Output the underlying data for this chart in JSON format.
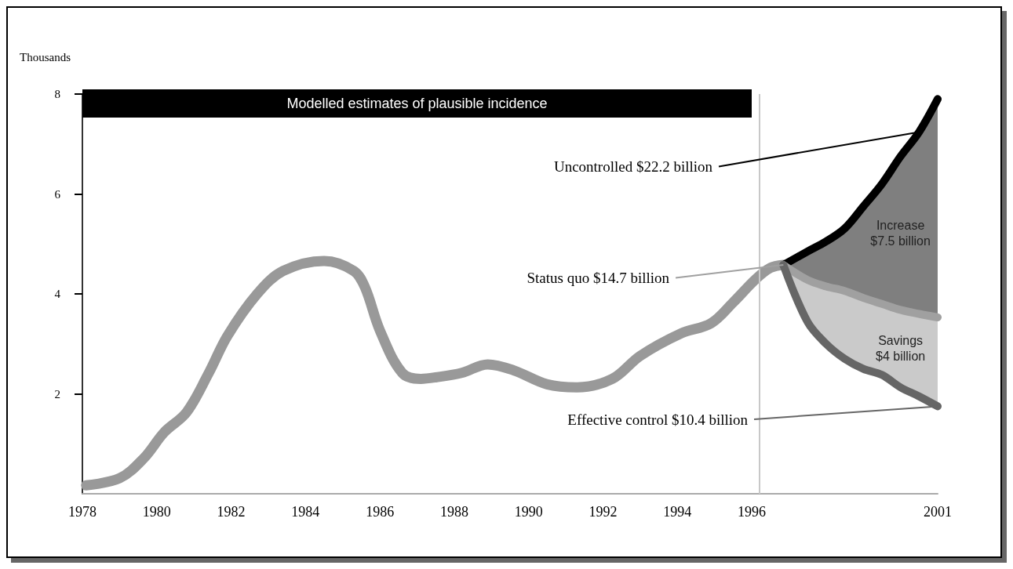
{
  "chart_data": {
    "type": "line",
    "ylabel": "Thousands",
    "xlim": [
      1978,
      2001
    ],
    "xticks": [
      1978,
      1980,
      1982,
      1984,
      1986,
      1988,
      1990,
      1992,
      1994,
      1996,
      2001
    ],
    "ylim": [
      0,
      8
    ],
    "yticks": [
      2,
      4,
      6,
      8
    ],
    "grid": false,
    "legend": false,
    "line_style": "solid",
    "series": [
      {
        "color": "#999999",
        "x": [
          1978.1,
          1979.0,
          1979.65,
          1980.2,
          1980.8,
          1981.4,
          1981.9,
          1982.7,
          1983.4,
          1984.5,
          1985.3,
          1985.6,
          1986.0,
          1986.6,
          1987.1,
          1987.5,
          1988.2,
          1988.9,
          1989.6,
          1990.5,
          1991.3,
          1992.25,
          1993.0,
          1994.1,
          1994.9,
          1995.5,
          1996.1,
          1996.5,
          1996.85
        ],
        "values": [
          0.17,
          0.31,
          0.71,
          1.23,
          1.63,
          2.42,
          3.16,
          4.0,
          4.46,
          4.66,
          4.46,
          4.13,
          3.27,
          2.42,
          2.3,
          2.33,
          2.42,
          2.59,
          2.47,
          2.19,
          2.13,
          2.3,
          2.76,
          3.21,
          3.41,
          3.83,
          4.29,
          4.52,
          4.58
        ]
      },
      {
        "name": "Uncontrolled $22.2 billion",
        "color": "#000000",
        "x": [
          1996.85,
          1997.5,
          1998,
          1998.5,
          1999,
          1999.5,
          2000,
          2000.5,
          2001
        ],
        "values": [
          4.58,
          4.85,
          5.05,
          5.31,
          5.75,
          6.2,
          6.75,
          7.24,
          7.9
        ],
        "lower": [
          4.58,
          4.28,
          4.15,
          4.06,
          3.92,
          3.8,
          3.68,
          3.6,
          3.53
        ],
        "upper": [
          4.58,
          4.85,
          5.05,
          5.31,
          5.75,
          6.2,
          6.75,
          7.24,
          7.9
        ]
      },
      {
        "name": "Status quo $14.7 billion",
        "color": "#a0a0a0",
        "x": [
          1996.85,
          1997.5,
          1998,
          1998.5,
          1999,
          1999.5,
          2000,
          2000.5,
          2001
        ],
        "values": [
          4.58,
          4.28,
          4.15,
          4.06,
          3.92,
          3.8,
          3.68,
          3.6,
          3.53
        ]
      },
      {
        "name": "Effective control $10.4 billion",
        "color": "#666666",
        "x": [
          1996.85,
          1997.5,
          1998,
          1998.5,
          1999,
          1999.5,
          2000,
          2000.5,
          2001
        ],
        "values": [
          4.58,
          3.44,
          3.0,
          2.7,
          2.5,
          2.38,
          2.13,
          1.95,
          1.75
        ],
        "lower": [
          4.58,
          3.44,
          3.0,
          2.7,
          2.5,
          2.38,
          2.13,
          1.95,
          1.75
        ],
        "upper": [
          4.58,
          4.28,
          4.15,
          4.06,
          3.92,
          3.8,
          3.68,
          3.6,
          3.53
        ]
      }
    ],
    "ref_lines": [
      {
        "axis": "x",
        "value": 1996.2,
        "color": "#c8c8c8"
      }
    ],
    "annotations": [
      "Modelled estimates of plausible incidence",
      "Increase $7.5 billion",
      "Savings $4 billion"
    ]
  }
}
